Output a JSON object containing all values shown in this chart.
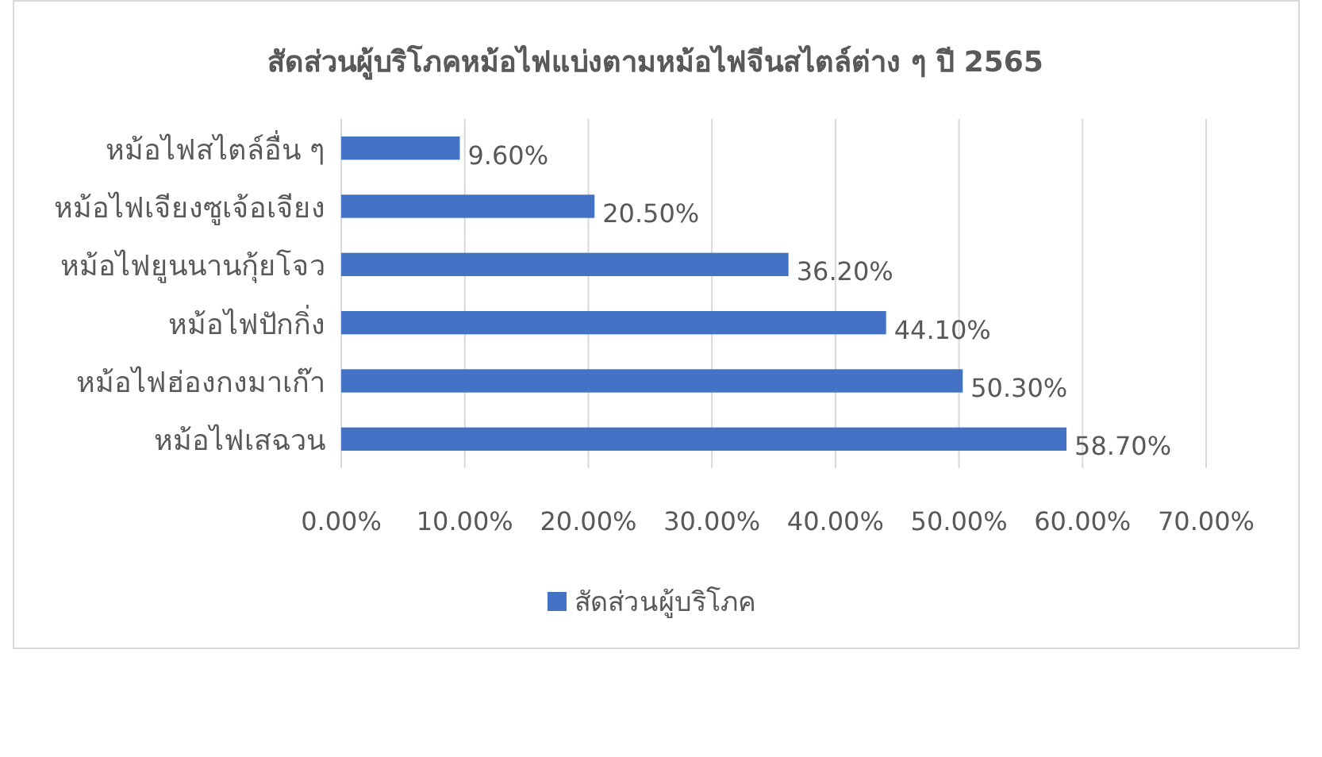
{
  "chart_data": {
    "type": "bar",
    "orientation": "horizontal",
    "title": "สัดส่วนผู้บริโภคหม้อไฟแบ่งตามหม้อไฟจีนสไตล์ต่าง ๆ ปี 2565",
    "categories": [
      "หม้อไฟสไตล์อื่น ๆ",
      "หม้อไฟเจียงซูเจ้อเจียง",
      "หม้อไฟยูนนานกุ้ยโจว",
      "หม้อไฟปักกิ่ง",
      "หม้อไฟฮ่องกงมาเก๊า",
      "หม้อไฟเสฉวน"
    ],
    "series": [
      {
        "name": "สัดส่วนผู้บริโภค",
        "color": "#4472c4",
        "values": [
          9.6,
          20.5,
          36.2,
          44.1,
          50.3,
          58.7
        ],
        "value_labels": [
          "9.60%",
          "20.50%",
          "36.20%",
          "44.10%",
          "50.30%",
          "58.70%"
        ]
      }
    ],
    "xlim": [
      0,
      70
    ],
    "xticks": [
      {
        "value": 0,
        "label": "0.00%"
      },
      {
        "value": 10,
        "label": "10.00%"
      },
      {
        "value": 20,
        "label": "20.00%"
      },
      {
        "value": 30,
        "label": "30.00%"
      },
      {
        "value": 40,
        "label": "40.00%"
      },
      {
        "value": 50,
        "label": "50.00%"
      },
      {
        "value": 60,
        "label": "60.00%"
      },
      {
        "value": 70,
        "label": "70.00%"
      }
    ],
    "grid": "x",
    "legend": "bottom"
  }
}
